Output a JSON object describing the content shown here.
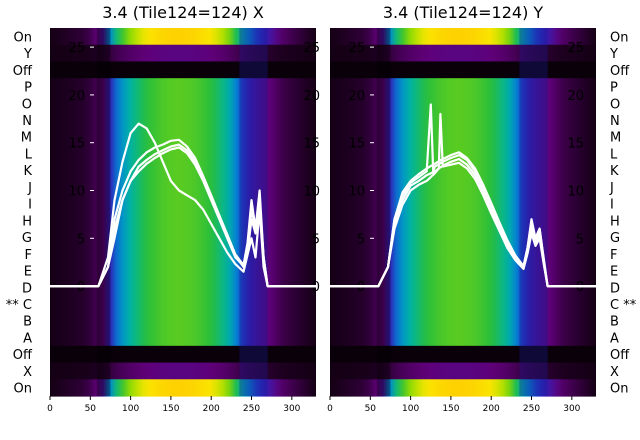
{
  "chart_data": [
    {
      "type": "heatmap",
      "title": "3.4 (Tile124=124) X",
      "row_labels_side": "left",
      "row_labels": [
        "On",
        "Y",
        "Off",
        "P",
        "O",
        "N",
        "M",
        "L",
        "K",
        "J",
        "I",
        "H",
        "G",
        "F",
        "E",
        "D",
        "** C",
        "B",
        "A",
        "Off",
        "X",
        "On"
      ],
      "xlim": [
        0,
        330
      ],
      "xticks": [
        0,
        50,
        100,
        150,
        200,
        250,
        300
      ],
      "overlay_ylim": [
        -11.5,
        27
      ],
      "overlay_yticks": [
        0,
        5,
        10,
        15,
        20,
        25
      ],
      "heat_profile": {
        "x": [
          0,
          45,
          65,
          80,
          100,
          120,
          140,
          160,
          180,
          200,
          220,
          235,
          250,
          265,
          290,
          330
        ],
        "intensity": [
          0.0,
          0.03,
          0.1,
          0.3,
          0.45,
          0.55,
          0.6,
          0.62,
          0.6,
          0.55,
          0.45,
          0.3,
          0.2,
          0.15,
          0.06,
          0.0
        ]
      },
      "curves": [
        {
          "x": [
            0,
            60,
            72,
            80,
            90,
            100,
            110,
            120,
            130,
            140,
            150,
            160,
            170,
            180,
            190,
            200,
            210,
            220,
            230,
            240,
            245,
            250,
            255,
            260,
            265,
            270,
            330
          ],
          "y": [
            0,
            0,
            2,
            6,
            9,
            11,
            12.5,
            13.2,
            13.8,
            14.2,
            14.6,
            14.8,
            14.2,
            13,
            11.2,
            9.3,
            7.2,
            5.2,
            3.2,
            2,
            4,
            8,
            6,
            9,
            3,
            0,
            0
          ]
        },
        {
          "x": [
            0,
            60,
            72,
            80,
            90,
            100,
            110,
            120,
            130,
            140,
            150,
            160,
            170,
            180,
            190,
            200,
            210,
            220,
            230,
            240,
            245,
            250,
            255,
            260,
            265,
            270,
            330
          ],
          "y": [
            0,
            0,
            2,
            7,
            10,
            12,
            13.2,
            14,
            14.5,
            14.8,
            15.2,
            15.3,
            14.6,
            13.4,
            11.5,
            9.5,
            7.4,
            5.4,
            3.3,
            2.2,
            4.5,
            9,
            6,
            10,
            3,
            0,
            0
          ]
        },
        {
          "x": [
            0,
            60,
            72,
            80,
            90,
            100,
            110,
            120,
            130,
            140,
            150,
            160,
            170,
            180,
            190,
            200,
            210,
            220,
            230,
            240,
            245,
            250,
            255,
            260,
            265,
            270,
            330
          ],
          "y": [
            0,
            0,
            2,
            5,
            9,
            11,
            12,
            12.8,
            13.4,
            13.9,
            14.3,
            14.5,
            13.9,
            12.7,
            11,
            9,
            7,
            5,
            3,
            2.1,
            3.5,
            7,
            5.5,
            8,
            3,
            0,
            0
          ]
        },
        {
          "x": [
            0,
            60,
            72,
            80,
            90,
            100,
            110,
            120,
            130,
            140,
            150,
            160,
            170,
            180,
            190,
            200,
            210,
            220,
            230,
            240,
            250,
            255,
            260,
            265,
            270,
            330
          ],
          "y": [
            0,
            0,
            3,
            9,
            13,
            16,
            17,
            16.5,
            15,
            13,
            11,
            10,
            9.5,
            9,
            8,
            6.5,
            5,
            3.5,
            2.3,
            1.5,
            5,
            3,
            8,
            2,
            0,
            0
          ]
        }
      ]
    },
    {
      "type": "heatmap",
      "title": "3.4 (Tile124=124) Y",
      "row_labels_side": "right",
      "row_labels": [
        "On",
        "Y",
        "Off",
        "P",
        "O",
        "N",
        "M",
        "L",
        "K",
        "J",
        "I",
        "H",
        "G",
        "F",
        "E",
        "D",
        "C **",
        "B",
        "A",
        "Off",
        "X",
        "On"
      ],
      "xlim": [
        0,
        330
      ],
      "xticks": [
        0,
        50,
        100,
        150,
        200,
        250,
        300
      ],
      "overlay_ylim": [
        -11.5,
        27
      ],
      "overlay_yticks": [
        0,
        5,
        10,
        15,
        20,
        25
      ],
      "heat_profile": {
        "x": [
          0,
          45,
          65,
          80,
          100,
          120,
          140,
          160,
          180,
          200,
          220,
          235,
          250,
          265,
          290,
          330
        ],
        "intensity": [
          0.0,
          0.03,
          0.1,
          0.3,
          0.45,
          0.55,
          0.6,
          0.62,
          0.6,
          0.55,
          0.45,
          0.3,
          0.2,
          0.15,
          0.06,
          0.0
        ]
      },
      "curves": [
        {
          "x": [
            0,
            60,
            72,
            80,
            90,
            100,
            110,
            120,
            125,
            128,
            130,
            140,
            150,
            160,
            170,
            180,
            190,
            200,
            210,
            220,
            230,
            240,
            245,
            250,
            255,
            260,
            265,
            270,
            330
          ],
          "y": [
            0,
            0,
            2,
            7,
            9.5,
            10.8,
            11.4,
            12,
            19,
            12,
            12.5,
            13,
            13.4,
            13.7,
            13.2,
            12,
            10.3,
            8.4,
            6.4,
            4.5,
            3,
            2,
            4,
            7,
            5,
            6,
            3,
            0,
            0
          ]
        },
        {
          "x": [
            0,
            60,
            72,
            80,
            90,
            100,
            110,
            120,
            130,
            140,
            150,
            160,
            170,
            180,
            190,
            200,
            210,
            220,
            230,
            240,
            245,
            250,
            255,
            260,
            265,
            270,
            330
          ],
          "y": [
            0,
            0,
            2,
            6.5,
            9,
            10.5,
            11,
            11.6,
            12,
            12.6,
            13,
            13.3,
            12.7,
            11.6,
            9.9,
            8,
            6.1,
            4.2,
            2.9,
            1.9,
            3.6,
            6,
            4.5,
            5.5,
            2.5,
            0,
            0
          ]
        },
        {
          "x": [
            0,
            60,
            72,
            80,
            90,
            100,
            110,
            120,
            130,
            135,
            137,
            140,
            150,
            160,
            170,
            180,
            190,
            200,
            210,
            220,
            230,
            240,
            245,
            250,
            255,
            260,
            265,
            270,
            330
          ],
          "y": [
            0,
            0,
            2,
            6,
            8.5,
            10,
            10.6,
            11,
            11.8,
            12.3,
            18,
            12.5,
            12.7,
            12.9,
            12.3,
            11.2,
            9.5,
            7.6,
            5.8,
            4,
            2.7,
            1.8,
            3.4,
            5.5,
            4.2,
            5,
            2.4,
            0,
            0
          ]
        },
        {
          "x": [
            0,
            60,
            72,
            80,
            90,
            100,
            110,
            120,
            130,
            140,
            150,
            160,
            170,
            180,
            190,
            200,
            210,
            220,
            230,
            240,
            245,
            250,
            255,
            260,
            265,
            270,
            330
          ],
          "y": [
            0,
            0,
            2,
            7,
            9.8,
            11,
            11.7,
            12.3,
            12.8,
            13.3,
            13.7,
            14,
            13.4,
            12.3,
            10.6,
            8.7,
            6.7,
            4.8,
            3.2,
            2.1,
            4,
            6.5,
            5,
            6,
            2.8,
            0,
            0
          ]
        }
      ]
    }
  ]
}
